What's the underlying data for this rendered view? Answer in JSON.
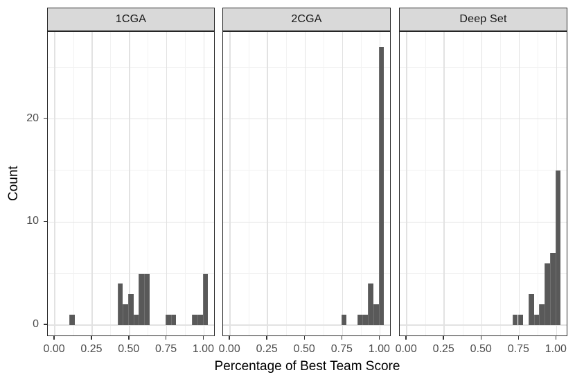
{
  "chart_data": {
    "type": "bar",
    "subtype": "faceted-histogram",
    "title": "",
    "xlabel": "Percentage of Best Team Score",
    "ylabel": "Count",
    "legend": null,
    "grid": true,
    "xlim": [
      -0.047,
      1.077
    ],
    "ylim": [
      -1.15,
      28.45
    ],
    "binwidth": 0.0357,
    "x_ticks": [
      {
        "v": 0.0,
        "label": "0.00"
      },
      {
        "v": 0.25,
        "label": "0.25"
      },
      {
        "v": 0.5,
        "label": "0.50"
      },
      {
        "v": 0.75,
        "label": "0.75"
      },
      {
        "v": 1.0,
        "label": "1.00"
      }
    ],
    "y_ticks": [
      {
        "v": 0,
        "label": "0"
      },
      {
        "v": 10,
        "label": "10"
      },
      {
        "v": 20,
        "label": "20"
      }
    ],
    "x_minor": [
      0.125,
      0.375,
      0.625,
      0.875
    ],
    "y_minor": [
      5,
      15,
      25
    ],
    "facets": [
      {
        "label": "1CGA",
        "bars": [
          {
            "x0": 0.099,
            "count": 1
          },
          {
            "x0": 0.42,
            "count": 4
          },
          {
            "x0": 0.456,
            "count": 2
          },
          {
            "x0": 0.492,
            "count": 3
          },
          {
            "x0": 0.528,
            "count": 1
          },
          {
            "x0": 0.563,
            "count": 5
          },
          {
            "x0": 0.599,
            "count": 5
          },
          {
            "x0": 0.742,
            "count": 1
          },
          {
            "x0": 0.778,
            "count": 1
          },
          {
            "x0": 0.921,
            "count": 1
          },
          {
            "x0": 0.956,
            "count": 1
          },
          {
            "x0": 0.992,
            "count": 5
          }
        ]
      },
      {
        "label": "2CGA",
        "bars": [
          {
            "x0": 0.742,
            "count": 1
          },
          {
            "x0": 0.849,
            "count": 1
          },
          {
            "x0": 0.885,
            "count": 1
          },
          {
            "x0": 0.921,
            "count": 4
          },
          {
            "x0": 0.956,
            "count": 2
          },
          {
            "x0": 0.992,
            "count": 27
          }
        ]
      },
      {
        "label": "Deep Set",
        "bars": [
          {
            "x0": 0.706,
            "count": 1
          },
          {
            "x0": 0.742,
            "count": 1
          },
          {
            "x0": 0.813,
            "count": 3
          },
          {
            "x0": 0.849,
            "count": 1
          },
          {
            "x0": 0.885,
            "count": 2
          },
          {
            "x0": 0.921,
            "count": 6
          },
          {
            "x0": 0.956,
            "count": 7
          },
          {
            "x0": 0.992,
            "count": 15
          }
        ]
      }
    ],
    "colors": {
      "bar": "#595959",
      "strip_bg": "#d9d9d9",
      "panel_border": "#262626",
      "grid_major": "#e2e2e2",
      "grid_minor": "#f2f2f2",
      "tick_label": "#4d4d4d",
      "axis_title": "#000000",
      "tick_mark": "#333333",
      "background": "#ffffff"
    }
  }
}
